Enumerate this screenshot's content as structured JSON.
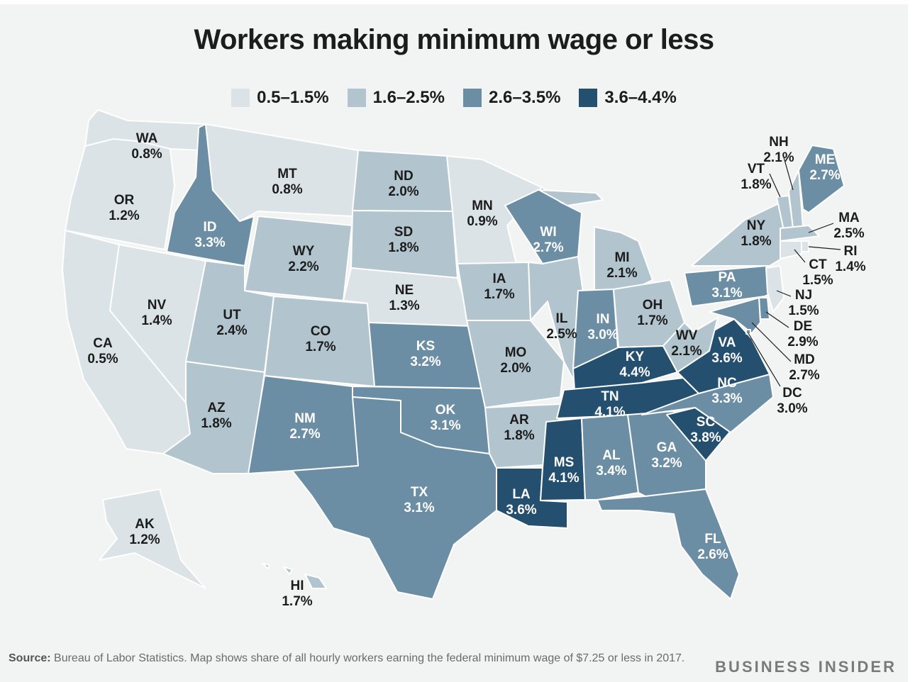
{
  "title": "Workers making minimum wage or less",
  "legend": [
    {
      "label": "0.5–1.5%",
      "color": "#dbe3e7"
    },
    {
      "label": "1.6–2.5%",
      "color": "#b2c5cf"
    },
    {
      "label": "2.6–3.5%",
      "color": "#6c8ea5"
    },
    {
      "label": "3.6–4.4%",
      "color": "#254f6f"
    }
  ],
  "map_data": {
    "type": "choropleth",
    "region": "United States",
    "states": [
      {
        "abbr": "WA",
        "value": "0.8%",
        "bin": 0
      },
      {
        "abbr": "OR",
        "value": "1.2%",
        "bin": 0
      },
      {
        "abbr": "CA",
        "value": "0.5%",
        "bin": 0
      },
      {
        "abbr": "NV",
        "value": "1.4%",
        "bin": 0
      },
      {
        "abbr": "ID",
        "value": "3.3%",
        "bin": 2
      },
      {
        "abbr": "MT",
        "value": "0.8%",
        "bin": 0
      },
      {
        "abbr": "WY",
        "value": "2.2%",
        "bin": 1
      },
      {
        "abbr": "UT",
        "value": "2.4%",
        "bin": 1
      },
      {
        "abbr": "AZ",
        "value": "1.8%",
        "bin": 1
      },
      {
        "abbr": "CO",
        "value": "1.7%",
        "bin": 1
      },
      {
        "abbr": "NM",
        "value": "2.7%",
        "bin": 2
      },
      {
        "abbr": "ND",
        "value": "2.0%",
        "bin": 1
      },
      {
        "abbr": "SD",
        "value": "1.8%",
        "bin": 1
      },
      {
        "abbr": "NE",
        "value": "1.3%",
        "bin": 0
      },
      {
        "abbr": "KS",
        "value": "3.2%",
        "bin": 2
      },
      {
        "abbr": "OK",
        "value": "3.1%",
        "bin": 2
      },
      {
        "abbr": "TX",
        "value": "3.1%",
        "bin": 2
      },
      {
        "abbr": "MN",
        "value": "0.9%",
        "bin": 0
      },
      {
        "abbr": "IA",
        "value": "1.7%",
        "bin": 1
      },
      {
        "abbr": "MO",
        "value": "2.0%",
        "bin": 1
      },
      {
        "abbr": "AR",
        "value": "1.8%",
        "bin": 1
      },
      {
        "abbr": "LA",
        "value": "3.6%",
        "bin": 3
      },
      {
        "abbr": "WI",
        "value": "2.7%",
        "bin": 2
      },
      {
        "abbr": "IL",
        "value": "2.5%",
        "bin": 1
      },
      {
        "abbr": "MI",
        "value": "2.1%",
        "bin": 1
      },
      {
        "abbr": "IN",
        "value": "3.0%",
        "bin": 2
      },
      {
        "abbr": "OH",
        "value": "1.7%",
        "bin": 1
      },
      {
        "abbr": "KY",
        "value": "4.4%",
        "bin": 3
      },
      {
        "abbr": "TN",
        "value": "4.1%",
        "bin": 3
      },
      {
        "abbr": "MS",
        "value": "4.1%",
        "bin": 3
      },
      {
        "abbr": "AL",
        "value": "3.4%",
        "bin": 2
      },
      {
        "abbr": "GA",
        "value": "3.2%",
        "bin": 2
      },
      {
        "abbr": "FL",
        "value": "2.6%",
        "bin": 2
      },
      {
        "abbr": "SC",
        "value": "3.8%",
        "bin": 3
      },
      {
        "abbr": "NC",
        "value": "3.3%",
        "bin": 2
      },
      {
        "abbr": "VA",
        "value": "3.6%",
        "bin": 3
      },
      {
        "abbr": "WV",
        "value": "2.1%",
        "bin": 1
      },
      {
        "abbr": "PA",
        "value": "3.1%",
        "bin": 2
      },
      {
        "abbr": "NY",
        "value": "1.8%",
        "bin": 1
      },
      {
        "abbr": "VT",
        "value": "1.8%",
        "bin": 1
      },
      {
        "abbr": "NH",
        "value": "2.1%",
        "bin": 1
      },
      {
        "abbr": "ME",
        "value": "2.7%",
        "bin": 2
      },
      {
        "abbr": "MA",
        "value": "2.5%",
        "bin": 1
      },
      {
        "abbr": "RI",
        "value": "1.4%",
        "bin": 0
      },
      {
        "abbr": "CT",
        "value": "1.5%",
        "bin": 0
      },
      {
        "abbr": "NJ",
        "value": "1.5%",
        "bin": 0
      },
      {
        "abbr": "DE",
        "value": "2.9%",
        "bin": 2
      },
      {
        "abbr": "MD",
        "value": "2.7%",
        "bin": 2
      },
      {
        "abbr": "DC",
        "value": "3.0%",
        "bin": 2
      },
      {
        "abbr": "AK",
        "value": "1.2%",
        "bin": 0
      },
      {
        "abbr": "HI",
        "value": "1.7%",
        "bin": 1
      }
    ]
  },
  "source": {
    "label": "Source:",
    "text": "Bureau of Labor Statistics. Map shows share of all hourly workers earning the federal minimum wage of $7.25 or less in 2017."
  },
  "brand": "BUSINESS INSIDER"
}
